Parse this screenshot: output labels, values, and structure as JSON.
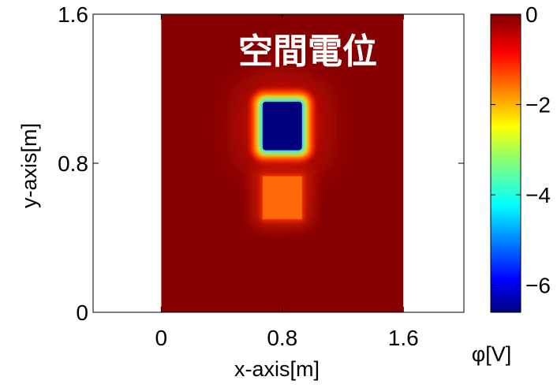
{
  "chart_data": {
    "type": "heatmap",
    "title": "空間電位",
    "xlabel": "x-axis[m]",
    "ylabel": "y-axis[m]",
    "xlim": [
      -0.45,
      2.0
    ],
    "ylim": [
      0,
      1.6
    ],
    "x_ticks": [
      0,
      0.8,
      1.6
    ],
    "x_tick_labels": [
      "0",
      "0.8",
      "1.6"
    ],
    "y_ticks": [
      0,
      0.8,
      1.6
    ],
    "y_tick_labels": [
      "0",
      "0.8",
      "1.6"
    ],
    "domain_x": [
      0,
      1.6
    ],
    "domain_y": [
      0,
      1.6
    ],
    "background_potential": -0.05,
    "regions": [
      {
        "name": "",
        "x": [
          0.67,
          0.93
        ],
        "y": [
          0.87,
          1.13
        ],
        "potential": -6.6
      },
      {
        "name": "",
        "x": [
          0.67,
          0.93
        ],
        "y": [
          0.5,
          0.73
        ],
        "potential": -1.2
      }
    ],
    "colorbar": {
      "label": "φ[V]",
      "range": [
        -6.6,
        0
      ],
      "ticks": [
        0,
        -2,
        -4,
        -6
      ],
      "tick_labels": [
        "0",
        "−2",
        "−4",
        "−6"
      ],
      "colormap": "jet"
    },
    "grid": false
  }
}
